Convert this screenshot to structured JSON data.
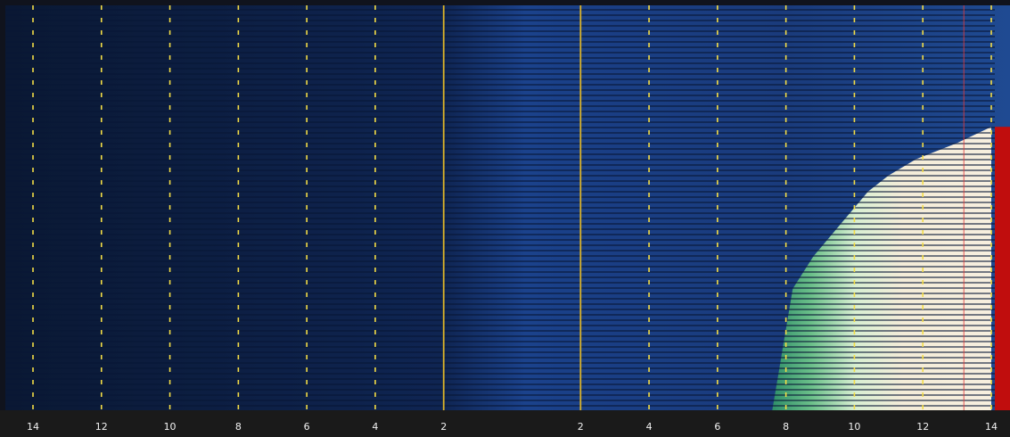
{
  "chart_data": {
    "type": "heatmap",
    "title": "",
    "xlabel": "",
    "ylabel": "",
    "x_axis": {
      "range": [
        -14,
        14
      ],
      "major_ticks": [
        -14,
        -12,
        -10,
        -8,
        -6,
        -4,
        -2,
        2,
        4,
        6,
        8,
        10,
        12,
        14
      ],
      "tick_labels": [
        "14",
        "12",
        "10",
        "8",
        "6",
        "4",
        "2",
        "2",
        "4",
        "6",
        "8",
        "10",
        "12",
        "14"
      ]
    },
    "gridlines": {
      "style": "dashed",
      "at": [
        -14,
        -12,
        -10,
        -8,
        -6,
        -4,
        4,
        6,
        8,
        10,
        12,
        14
      ]
    },
    "reference_lines": {
      "style": "solid",
      "at": [
        -2,
        2
      ]
    },
    "marker_line": {
      "at": 13.2
    },
    "signal_region": {
      "description_values": "bright return occupying the right side, edge moving outward with row",
      "edge_x_by_row_fraction": [
        [
          0.3,
          14.0
        ],
        [
          0.34,
          13.0
        ],
        [
          0.38,
          11.8
        ],
        [
          0.42,
          11.0
        ],
        [
          0.46,
          10.4
        ],
        [
          0.5,
          10.0
        ],
        [
          0.56,
          9.4
        ],
        [
          0.62,
          8.8
        ],
        [
          0.7,
          8.2
        ],
        [
          0.8,
          8.0
        ],
        [
          0.9,
          7.8
        ],
        [
          1.0,
          7.6
        ]
      ]
    },
    "colors": {
      "background_dark": "#0b1a3a",
      "background_band": "#1a3f86",
      "scanline": "#071634",
      "signal_low": "#3b9c6e",
      "signal_high": "#f3ecd8",
      "gridline": "#f4dd45",
      "reference_line": "#d9b22a",
      "marker": "#e23a3a",
      "edge_bar": "#c00d0d",
      "axis_bar": "#1a1a1a",
      "tick_text": "#f2f2f2"
    }
  }
}
